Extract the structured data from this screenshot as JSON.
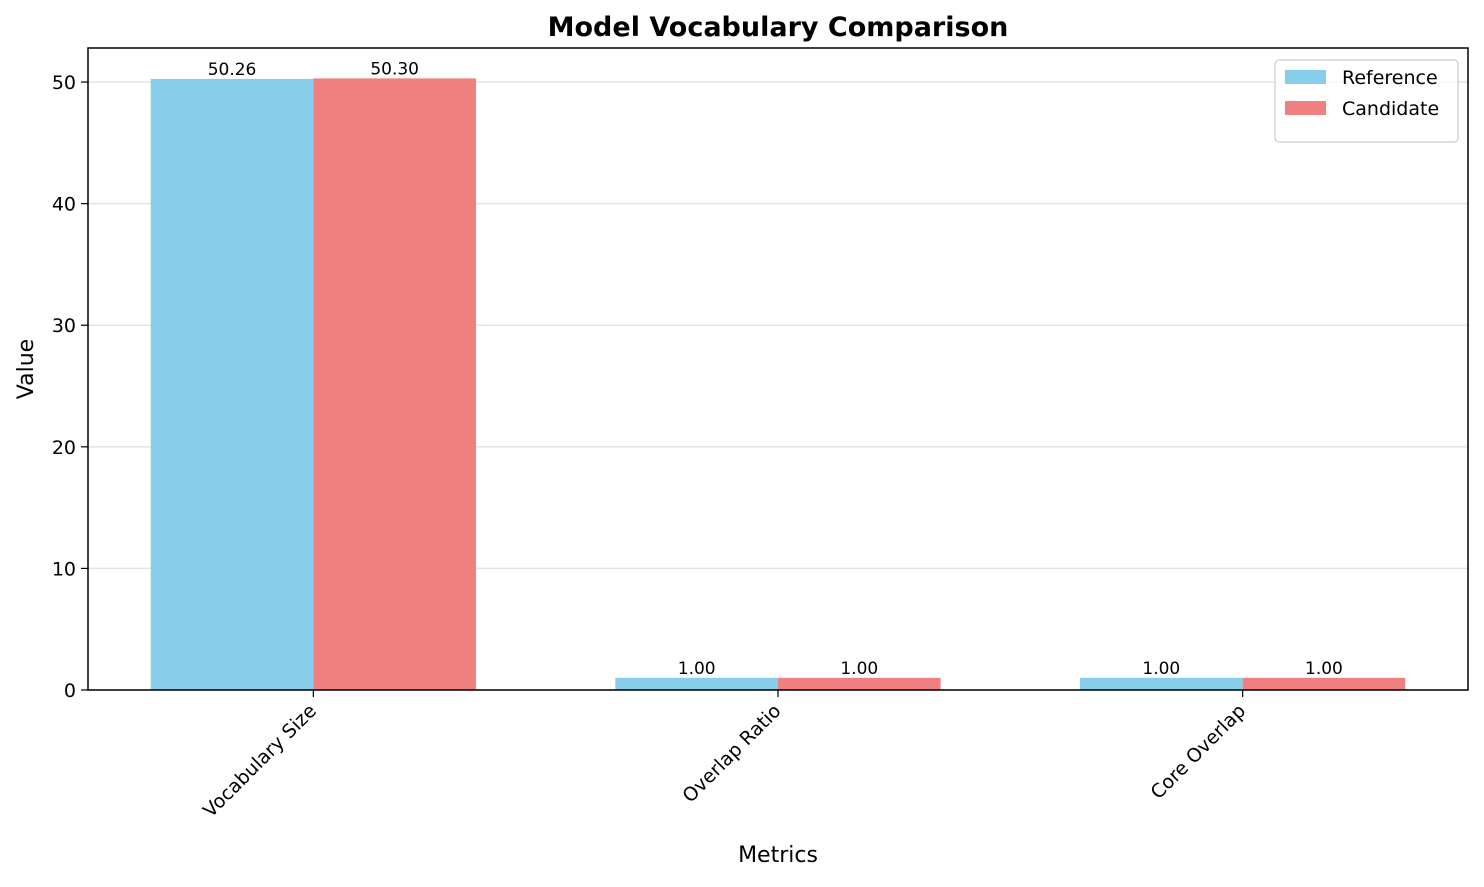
{
  "chart_data": {
    "type": "bar",
    "title": "Model Vocabulary Comparison",
    "x_label": "Metrics",
    "y_label": "Value",
    "categories": [
      "Vocabulary Size",
      "Overlap Ratio",
      "Core Overlap"
    ],
    "series": [
      {
        "name": "Reference",
        "color": "#87ceeb",
        "values": [
          50.26,
          1,
          1
        ],
        "value_labels": [
          "50.26",
          "1.00",
          "1.00"
        ]
      },
      {
        "name": "Candidate",
        "color": "#f08080",
        "values": [
          50.3,
          1,
          1
        ],
        "value_labels": [
          "50.30",
          "1.00",
          "1.00"
        ]
      }
    ],
    "ylim": [
      0,
      52.8
    ],
    "yticks": [
      0,
      10,
      20,
      30,
      40,
      50
    ],
    "grid": true,
    "legend": "upper right"
  }
}
